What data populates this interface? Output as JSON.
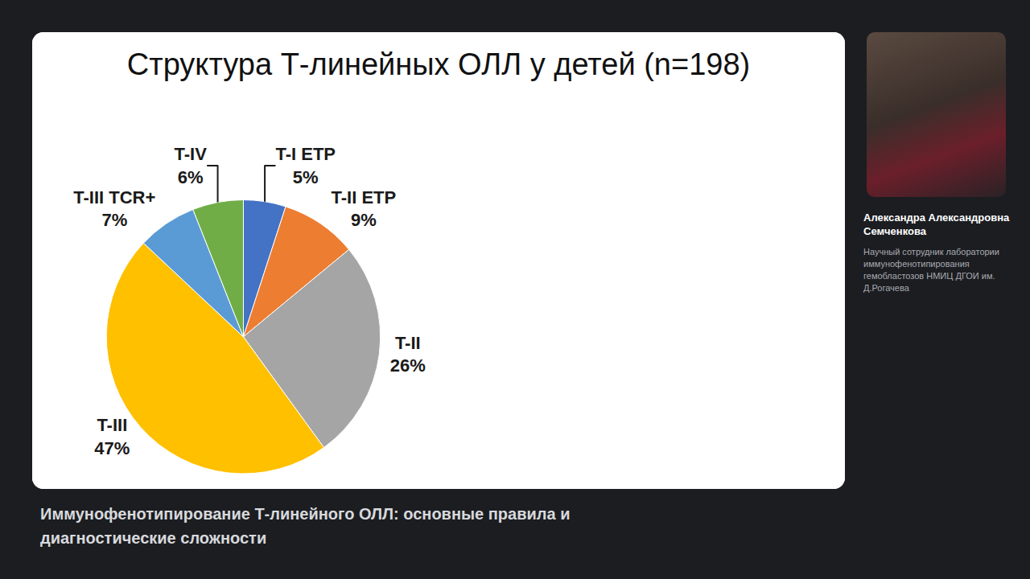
{
  "chart_data": {
    "type": "pie",
    "title": "Структура Т-линейных ОЛЛ у детей (n=198)",
    "categories": [
      "T-I ETP",
      "T-II ETP",
      "T-II",
      "T-III",
      "T-III TCR+",
      "T-IV"
    ],
    "values": [
      5,
      9,
      26,
      47,
      7,
      6
    ],
    "value_labels": [
      "5%",
      "9%",
      "26%",
      "47%",
      "7%",
      "6%"
    ],
    "colors": [
      "#4472c4",
      "#ed7d31",
      "#a5a5a5",
      "#ffc000",
      "#5b9bd5",
      "#70ad47"
    ],
    "data_labels": true
  },
  "speaker": {
    "name": "Александра Александровна Семченкова",
    "role": "Научный сотрудник лаборатории иммунофенотипирования гемобластозов НМИЦ ДГОИ им. Д.Рогачева"
  },
  "talk_title": "Иммунофенотипирование Т-линейного ОЛЛ: основные правила и диагностические сложности"
}
